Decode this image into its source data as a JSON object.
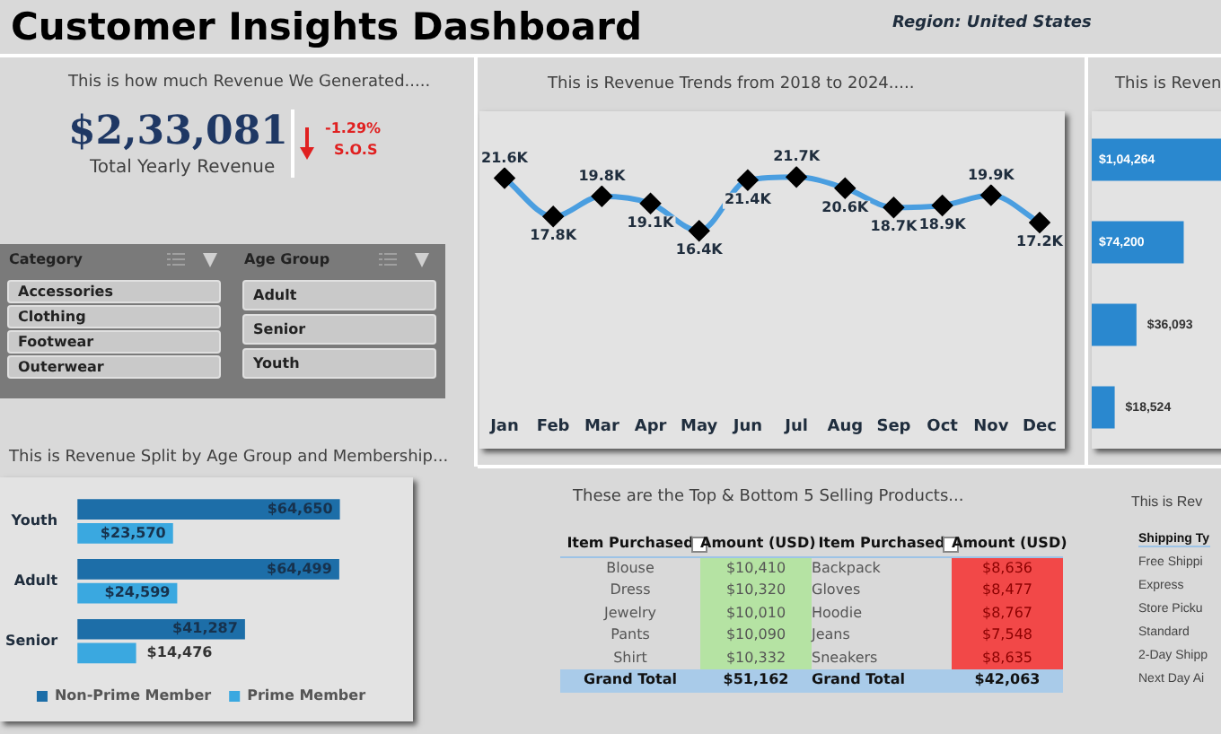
{
  "chart_data": [
    {
      "type": "other",
      "title": "Customer Insights Dashboard",
      "subtitle": "Region: United States",
      "annotations": [
        "This is how much Revenue We Generated.....",
        "$2,33,081",
        "Total Yearly Revenue",
        "-1.29%",
        "S.O.S"
      ]
    },
    {
      "type": "other",
      "annotations": [
        "Category",
        "Accessories",
        "Clothing",
        "Footwear",
        "Outerwear",
        "Age Group",
        "Adult",
        "Senior",
        "Youth"
      ]
    },
    {
      "type": "line",
      "title": "This is Revenue Trends from 2018 to 2024.....",
      "categories": [
        "Jan",
        "Feb",
        "Mar",
        "Apr",
        "May",
        "Jun",
        "Jul",
        "Aug",
        "Sep",
        "Oct",
        "Nov",
        "Dec"
      ],
      "values": [
        21600,
        17800,
        19800,
        19100,
        16400,
        21400,
        21700,
        20600,
        18700,
        18900,
        19900,
        17200
      ],
      "value_labels": [
        "21.6K",
        "17.8K",
        "19.8K",
        "19.1K",
        "16.4K",
        "21.4K",
        "21.7K",
        "20.6K",
        "18.7K",
        "18.9K",
        "19.9K",
        "17.2K"
      ],
      "color": "#4a9ee0",
      "marker": "diamond",
      "tick_labels": "x"
    },
    {
      "type": "bar",
      "orientation": "horizontal",
      "title": "This is Reven",
      "categories": [
        null,
        null,
        null,
        null
      ],
      "values": [
        104264,
        74200,
        36093,
        18524
      ],
      "value_labels": [
        "$1,04,264",
        "$74,200",
        "$36,093",
        "$18,524"
      ],
      "color": "#2a88cf",
      "tick_labels": false
    },
    {
      "type": "bar",
      "orientation": "horizontal",
      "title": "This is Revenue Split by Age Group and Membership...",
      "categories": [
        "Youth",
        "Adult",
        "Senior"
      ],
      "series": [
        {
          "name": "Non-Prime Member",
          "color": "#1d6ea8",
          "values": [
            64650,
            64499,
            41287
          ],
          "value_labels": [
            "$64,650",
            "$64,499",
            "$41,287"
          ]
        },
        {
          "name": "Prime Member",
          "color": "#3aa8e0",
          "values": [
            23570,
            24599,
            14476
          ],
          "value_labels": [
            "$23,570",
            "$24,599",
            "$14,476"
          ]
        }
      ],
      "legend": "bottom",
      "tick_labels": "y"
    },
    {
      "type": "other",
      "title": "These are the Top & Bottom 5 Selling Products...",
      "annotations": [
        "Item Purchased",
        "Amount (USD)",
        "Item Purchased",
        "Amount (USD)",
        "Blouse",
        "$10,410",
        "Backpack",
        "$8,636",
        "Dress",
        "$10,320",
        "Gloves",
        "$8,477",
        "Jewelry",
        "$10,010",
        "Hoodie",
        "$8,767",
        "Pants",
        "$10,090",
        "Jeans",
        "$7,548",
        "Shirt",
        "$10,332",
        "Sneakers",
        "$8,635",
        "Grand Total",
        "$51,162",
        "Grand Total",
        "$42,063"
      ]
    },
    {
      "type": "other",
      "title": "This is Rev",
      "annotations": [
        "Shipping Ty",
        "Free Shippi",
        "Express",
        "Store Picku",
        "Standard",
        "2-Day Shipp",
        "Next Day Ai"
      ]
    }
  ]
}
